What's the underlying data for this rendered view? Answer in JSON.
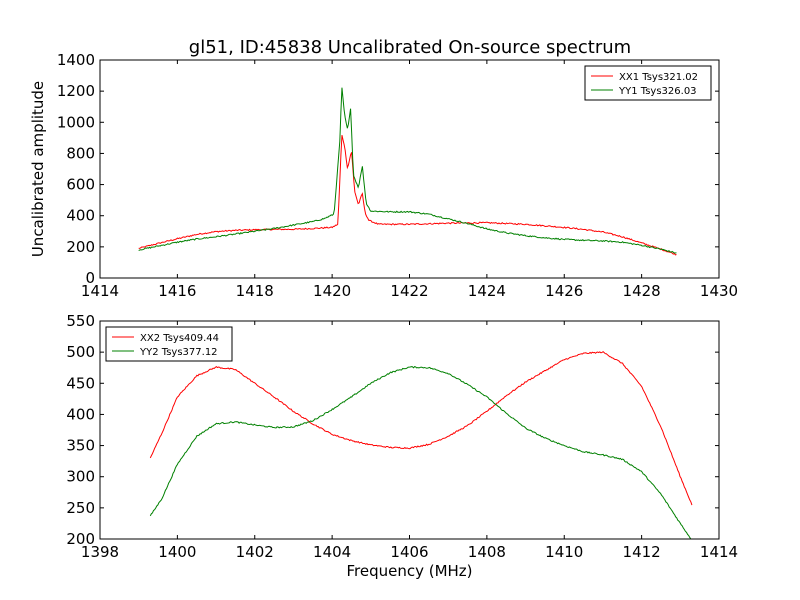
{
  "title": "gl51, ID:45838 Uncalibrated On-source spectrum",
  "chart_data": [
    {
      "type": "line",
      "ylabel": "Uncalibrated amplitude",
      "xlabel": "",
      "xlim": [
        1414,
        1430
      ],
      "ylim": [
        0,
        1400
      ],
      "xticks": [
        "1414",
        "1416",
        "1418",
        "1420",
        "1422",
        "1424",
        "1426",
        "1428",
        "1430"
      ],
      "yticks": [
        "0",
        "200",
        "400",
        "600",
        "800",
        "1000",
        "1200",
        "1400"
      ],
      "legend_position": "top-right",
      "series": [
        {
          "name": "XX1 Tsys321.02",
          "color": "#ff0000",
          "points": [
            [
              1415.0,
              190
            ],
            [
              1415.5,
              222
            ],
            [
              1416.0,
              252
            ],
            [
              1416.5,
              280
            ],
            [
              1417.0,
              298
            ],
            [
              1417.5,
              306
            ],
            [
              1418.0,
              310
            ],
            [
              1418.5,
              312
            ],
            [
              1419.0,
              313
            ],
            [
              1419.5,
              318
            ],
            [
              1420.0,
              325
            ],
            [
              1420.15,
              345
            ],
            [
              1420.25,
              920
            ],
            [
              1420.32,
              850
            ],
            [
              1420.4,
              700
            ],
            [
              1420.5,
              820
            ],
            [
              1420.58,
              560
            ],
            [
              1420.68,
              470
            ],
            [
              1420.78,
              545
            ],
            [
              1420.85,
              420
            ],
            [
              1420.95,
              370
            ],
            [
              1421.2,
              345
            ],
            [
              1422.0,
              345
            ],
            [
              1423.0,
              352
            ],
            [
              1424.0,
              355
            ],
            [
              1425.0,
              345
            ],
            [
              1426.0,
              325
            ],
            [
              1426.5,
              312
            ],
            [
              1427.0,
              295
            ],
            [
              1427.5,
              265
            ],
            [
              1428.0,
              225
            ],
            [
              1428.5,
              185
            ],
            [
              1428.9,
              150
            ]
          ]
        },
        {
          "name": "YY1 Tsys326.03",
          "color": "#008000",
          "points": [
            [
              1415.0,
              180
            ],
            [
              1415.5,
              205
            ],
            [
              1416.0,
              230
            ],
            [
              1416.5,
              250
            ],
            [
              1417.0,
              265
            ],
            [
              1417.5,
              282
            ],
            [
              1418.0,
              300
            ],
            [
              1418.5,
              318
            ],
            [
              1419.0,
              340
            ],
            [
              1419.5,
              362
            ],
            [
              1419.8,
              382
            ],
            [
              1420.05,
              410
            ],
            [
              1420.2,
              880
            ],
            [
              1420.25,
              1230
            ],
            [
              1420.32,
              1050
            ],
            [
              1420.4,
              950
            ],
            [
              1420.48,
              1090
            ],
            [
              1420.55,
              660
            ],
            [
              1420.68,
              580
            ],
            [
              1420.78,
              720
            ],
            [
              1420.88,
              480
            ],
            [
              1421.0,
              430
            ],
            [
              1421.5,
              425
            ],
            [
              1422.0,
              425
            ],
            [
              1422.5,
              410
            ],
            [
              1423.0,
              380
            ],
            [
              1423.5,
              350
            ],
            [
              1424.0,
              315
            ],
            [
              1424.5,
              290
            ],
            [
              1425.0,
              272
            ],
            [
              1425.5,
              258
            ],
            [
              1426.0,
              248
            ],
            [
              1426.5,
              242
            ],
            [
              1427.0,
              238
            ],
            [
              1427.5,
              230
            ],
            [
              1428.0,
              210
            ],
            [
              1428.5,
              185
            ],
            [
              1428.9,
              160
            ]
          ]
        }
      ]
    },
    {
      "type": "line",
      "ylabel": "",
      "xlabel": "Frequency (MHz)",
      "xlim": [
        1398,
        1414
      ],
      "ylim": [
        200,
        550
      ],
      "xticks": [
        "1398",
        "1400",
        "1402",
        "1404",
        "1406",
        "1408",
        "1410",
        "1412",
        "1414"
      ],
      "yticks": [
        "200",
        "250",
        "300",
        "350",
        "400",
        "450",
        "500",
        "550"
      ],
      "legend_position": "top-left",
      "series": [
        {
          "name": "XX2 Tsys409.44",
          "color": "#ff0000",
          "points": [
            [
              1399.3,
              330
            ],
            [
              1399.6,
              370
            ],
            [
              1400.0,
              428
            ],
            [
              1400.5,
              462
            ],
            [
              1401.0,
              476
            ],
            [
              1401.5,
              472
            ],
            [
              1402.0,
              450
            ],
            [
              1402.5,
              428
            ],
            [
              1403.0,
              405
            ],
            [
              1403.5,
              385
            ],
            [
              1404.0,
              368
            ],
            [
              1404.5,
              358
            ],
            [
              1405.0,
              351
            ],
            [
              1405.5,
              347
            ],
            [
              1406.0,
              346
            ],
            [
              1406.5,
              352
            ],
            [
              1407.0,
              365
            ],
            [
              1407.5,
              382
            ],
            [
              1408.0,
              405
            ],
            [
              1408.5,
              430
            ],
            [
              1409.0,
              452
            ],
            [
              1409.5,
              470
            ],
            [
              1410.0,
              488
            ],
            [
              1410.5,
              498
            ],
            [
              1411.0,
              500
            ],
            [
              1411.5,
              482
            ],
            [
              1412.0,
              445
            ],
            [
              1412.5,
              380
            ],
            [
              1413.0,
              300
            ],
            [
              1413.3,
              255
            ]
          ]
        },
        {
          "name": "YY2 Tsys377.12",
          "color": "#008000",
          "points": [
            [
              1399.3,
              237
            ],
            [
              1399.6,
              265
            ],
            [
              1400.0,
              320
            ],
            [
              1400.5,
              365
            ],
            [
              1401.0,
              385
            ],
            [
              1401.5,
              388
            ],
            [
              1402.0,
              383
            ],
            [
              1402.5,
              379
            ],
            [
              1403.0,
              380
            ],
            [
              1403.5,
              390
            ],
            [
              1404.0,
              408
            ],
            [
              1404.5,
              428
            ],
            [
              1405.0,
              450
            ],
            [
              1405.5,
              467
            ],
            [
              1406.0,
              476
            ],
            [
              1406.5,
              475
            ],
            [
              1407.0,
              466
            ],
            [
              1407.5,
              448
            ],
            [
              1408.0,
              428
            ],
            [
              1408.5,
              402
            ],
            [
              1409.0,
              378
            ],
            [
              1409.5,
              362
            ],
            [
              1410.0,
              350
            ],
            [
              1410.5,
              340
            ],
            [
              1411.0,
              335
            ],
            [
              1411.5,
              328
            ],
            [
              1412.0,
              308
            ],
            [
              1412.5,
              272
            ],
            [
              1413.0,
              225
            ],
            [
              1413.3,
              198
            ]
          ]
        }
      ]
    }
  ]
}
